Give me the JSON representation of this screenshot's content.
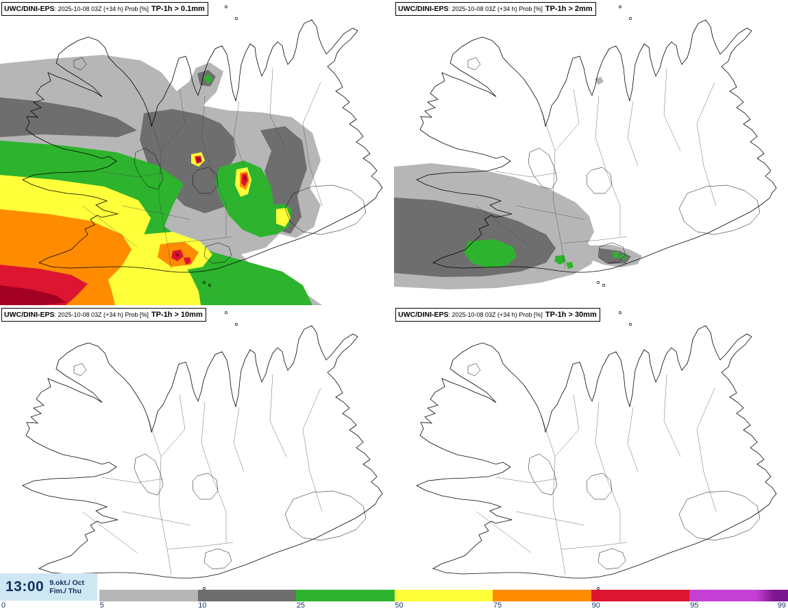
{
  "header": {
    "model": "UWC/DINI-EPS",
    "run": ": 2025-10-08 03Z (+34 h) Prob [%]"
  },
  "panels": [
    {
      "id": "tp-0p1mm",
      "threshold": "TP-1h > 0.1mm"
    },
    {
      "id": "tp-2mm",
      "threshold": "TP-1h > 2mm"
    },
    {
      "id": "tp-10mm",
      "threshold": "TP-1h > 10mm"
    },
    {
      "id": "tp-30mm",
      "threshold": "TP-1h > 30mm"
    }
  ],
  "footer": {
    "time": "13:00",
    "date_top": "9.okt./ Oct",
    "date_bottom": "Fim./ Thu"
  },
  "legend": {
    "title": "probability-percent-colorbar",
    "ticks": [
      "0",
      "5",
      "10",
      "25",
      "50",
      "75",
      "90",
      "95",
      "99"
    ],
    "segment_colors": [
      "#b6b6b6",
      "#6e6e6e",
      "#2db32d",
      "#ffff3a",
      "#ff8c00",
      "#dd1530",
      "#c43fd4"
    ],
    "end_color": "#7a1690"
  },
  "map_colors": {
    "p5": "#b6b6b6",
    "p10": "#6e6e6e",
    "p25": "#2db32d",
    "p50": "#ffff3a",
    "p75": "#ff8c00",
    "p90": "#dd1530",
    "p95": "#a40023"
  }
}
